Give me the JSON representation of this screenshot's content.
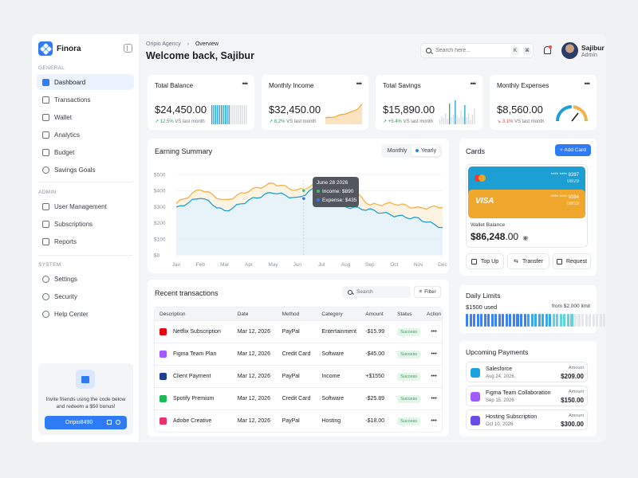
{
  "brand": {
    "name": "Finora"
  },
  "sidebar": {
    "general_label": "GENERAL",
    "admin_label": "ADMIN",
    "system_label": "SYSTEM",
    "general": [
      "Dashboard",
      "Transactions",
      "Wallet",
      "Analytics",
      "Budget",
      "Savings Goals"
    ],
    "admin": [
      "User Management",
      "Subscriptions",
      "Reports"
    ],
    "system": [
      "Settings",
      "Security",
      "Help Center"
    ],
    "active": "Dashboard"
  },
  "invite": {
    "text": "Invite friends using the code below and redeem a $50 bonus!",
    "code": "Oripio8490"
  },
  "header": {
    "crumb_parent": "Oripio Agency",
    "crumb_current": "Overview",
    "welcome": "Welcome back, Sajibur",
    "search_placeholder": "Search here...",
    "kbd1": "K",
    "kbd2": "⌘",
    "user_name": "Sajibur",
    "user_role": "Admin"
  },
  "stats": [
    {
      "title": "Total Balance",
      "value": "$24,450.00",
      "change": "12.5%",
      "note": "VS last month",
      "dir": "up"
    },
    {
      "title": "Monthly Income",
      "value": "$32,450.00",
      "change": "8.2%",
      "note": "VS last month",
      "dir": "up"
    },
    {
      "title": "Total Savings",
      "value": "$15,890.00",
      "change": "+5.4%",
      "note": "VS last month",
      "dir": "up"
    },
    {
      "title": "Monthly Expenses",
      "value": "$8,560.00",
      "change": "3.1%",
      "note": "VS last month",
      "dir": "down"
    }
  ],
  "earning": {
    "title": "Earning Summary",
    "toggle_monthly": "Monthly",
    "toggle_yearly": "Yearly",
    "tooltip_date": "June 28 2026",
    "tooltip_income_label": "Income",
    "tooltip_income_value": ": $890",
    "tooltip_expense_label": "Expense",
    "tooltip_expense_value": ": $435"
  },
  "chart_data": {
    "type": "area",
    "title": "",
    "xlabel": "",
    "ylabel": "",
    "categories": [
      "Jan",
      "Feb",
      "Mar",
      "Apr",
      "May",
      "Jun",
      "Jul",
      "Aug",
      "Sep",
      "Oct",
      "Nov",
      "Dec"
    ],
    "y_ticks": [
      "$500",
      "$400",
      "$300",
      "$200",
      "$100",
      "$0"
    ],
    "ylim": [
      0,
      500
    ],
    "series": [
      {
        "color": "#f0b24a",
        "values": [
          320,
          410,
          335,
          400,
          445,
          400,
          450,
          440,
          310,
          320,
          290,
          300
        ]
      },
      {
        "color": "#1e9fd3",
        "values": [
          290,
          360,
          270,
          340,
          390,
          350,
          440,
          300,
          280,
          245,
          225,
          170
        ]
      }
    ]
  },
  "transactions": {
    "title": "Recent transactions",
    "search_placeholder": "Search",
    "filter_label": "Filter",
    "columns": [
      "Description",
      "Date",
      "Method",
      "Category",
      "Amount",
      "Status",
      "Action"
    ],
    "rows": [
      {
        "desc": "Netflix Subscription",
        "date": "Mar 12, 2026",
        "method": "PayPal",
        "category": "Entertainment",
        "amount": "-$15.99",
        "status": "Success",
        "icon_color": "#e50914",
        "icon": "netflix-icon"
      },
      {
        "desc": "Figma Team Plan",
        "date": "Mar 12, 2026",
        "method": "Credit Card",
        "category": "Software",
        "amount": "-$45.00",
        "status": "Success",
        "icon_color": "#a259ff",
        "icon": "figma-icon"
      },
      {
        "desc": "Client Payment",
        "date": "Mar 12, 2026",
        "method": "PayPal",
        "category": "Income",
        "amount": "+$1550",
        "status": "Success",
        "icon_color": "#1c3f94",
        "icon": "paypal-icon"
      },
      {
        "desc": "Spotify Premium",
        "date": "Mar 12, 2026",
        "method": "Credit Card",
        "category": "Software",
        "amount": "-$25.89",
        "status": "Success",
        "icon_color": "#1db954",
        "icon": "spotify-icon"
      },
      {
        "desc": "Adobe Creative",
        "date": "Mar 12, 2026",
        "method": "PayPal",
        "category": "Hosting",
        "amount": "-$18.00",
        "status": "Success",
        "icon_color": "#ec2f6c",
        "icon": "adobe-icon"
      }
    ],
    "action_glyph": "•••"
  },
  "cards": {
    "title": "Cards",
    "add_label": "+ Add Card",
    "card1_number": "**** **** 8397",
    "card1_exp": "08/29",
    "card2_brand": "VISA",
    "card2_number": "**** **** 9384",
    "card2_exp": "08/29",
    "wallet_label": "Wallet Balance",
    "wallet_value": "$86,248",
    "wallet_cents": ".00",
    "actions": [
      "Top Up",
      "Transfer",
      "Request"
    ]
  },
  "limits": {
    "title": "Daily Limits",
    "used": "$1500 used",
    "of": "from $2,000 limit",
    "used_fraction": 0.75
  },
  "upcoming": {
    "title": "Upcoming Payments",
    "amount_label": "Amount",
    "items": [
      {
        "name": "Salesforce",
        "date": "Aug 24, 2026",
        "amount": "$209.00",
        "color": "#1ba0e1",
        "icon": "salesforce-icon"
      },
      {
        "name": "Figma Team Collaboration",
        "date": "Sep 15, 2026",
        "amount": "$150.00",
        "color": "#a259ff",
        "icon": "figma-icon"
      },
      {
        "name": "Hosting Subscription",
        "date": "Oct 10, 2026",
        "amount": "$300.00",
        "color": "#6a4de8",
        "icon": "hosting-icon"
      }
    ]
  },
  "colors": {
    "accent": "#2f7bf5",
    "success": "#2a9d4f",
    "danger": "#e04646"
  }
}
